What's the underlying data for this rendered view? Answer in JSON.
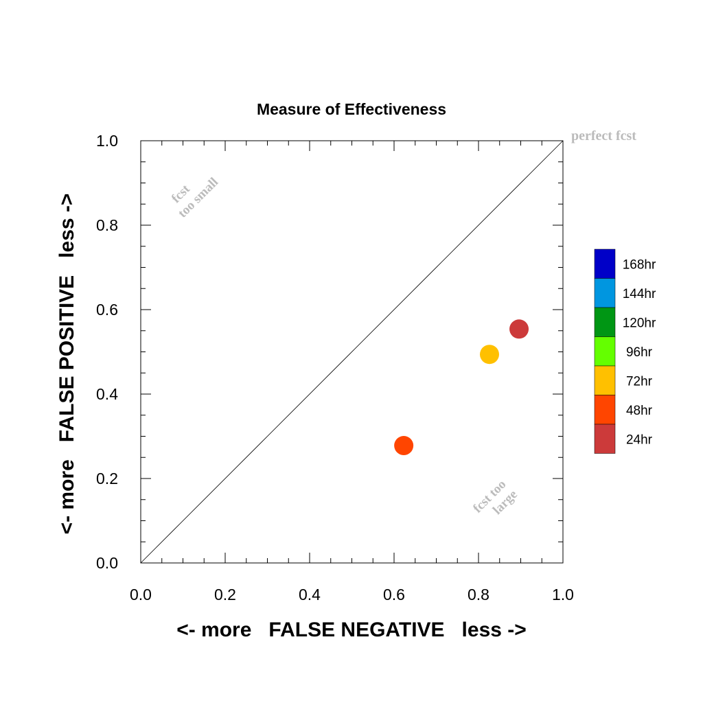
{
  "chart_data": {
    "type": "scatter",
    "title": "Measure of Effectiveness",
    "xlabel": "<- more   FALSE NEGATIVE   less ->",
    "ylabel": "<- more   FALSE POSITIVE   less ->",
    "xlim": [
      0.0,
      1.0
    ],
    "ylim": [
      0.0,
      1.0
    ],
    "x_ticks": [
      "0.0",
      "0.2",
      "0.4",
      "0.6",
      "0.8",
      "1.0"
    ],
    "y_ticks": [
      "0.0",
      "0.2",
      "0.4",
      "0.6",
      "0.8",
      "1.0"
    ],
    "grid": false,
    "reference_line": "diagonal y = x",
    "annotations": {
      "perfect": "perfect fcst",
      "small_1": "fcst",
      "small_2": "too small",
      "large_1": "fcst too",
      "large_2": "large"
    },
    "points": [
      {
        "label": "48hr",
        "x": 0.623,
        "y": 0.278,
        "color": "#ff4500"
      },
      {
        "label": "72hr",
        "x": 0.826,
        "y": 0.494,
        "color": "#ffc000"
      },
      {
        "label": "24hr",
        "x": 0.896,
        "y": 0.554,
        "color": "#cc3a3a"
      }
    ],
    "legend_position": "right",
    "legend": [
      {
        "label": "168hr",
        "color": "#0000c8"
      },
      {
        "label": "144hr",
        "color": "#0096e0"
      },
      {
        "label": "120hr",
        "color": "#009614"
      },
      {
        "label": "96hr",
        "color": "#64ff00"
      },
      {
        "label": "72hr",
        "color": "#ffc000"
      },
      {
        "label": "48hr",
        "color": "#ff4500"
      },
      {
        "label": "24hr",
        "color": "#cc3a3a"
      }
    ]
  }
}
